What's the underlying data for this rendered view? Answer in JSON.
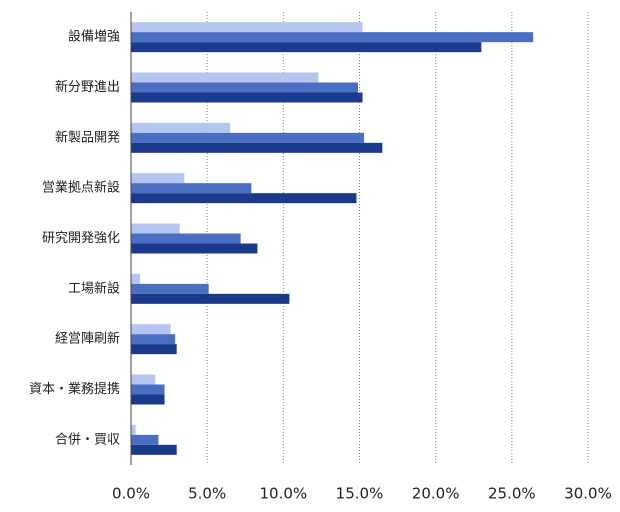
{
  "chart_data": {
    "type": "hbar",
    "categories": [
      "設備増強",
      "新分野進出",
      "新製品開発",
      "営業拠点新設",
      "研究開発強化",
      "工場新設",
      "経営陣刷新",
      "資本・業務提携",
      "合併・買収"
    ],
    "series": [
      {
        "color": "#b4c6ef",
        "values": [
          15.2,
          12.3,
          6.5,
          3.5,
          3.2,
          0.6,
          2.6,
          1.6,
          0.3
        ]
      },
      {
        "color": "#4a6fc2",
        "values": [
          26.4,
          14.9,
          15.3,
          7.9,
          7.2,
          5.1,
          2.9,
          2.2,
          1.8
        ]
      },
      {
        "color": "#1c3a8c",
        "values": [
          23.0,
          15.2,
          16.5,
          14.8,
          8.3,
          10.4,
          3.0,
          2.2,
          3.0
        ]
      }
    ],
    "xlim": [
      0,
      30
    ],
    "xticks": [
      {
        "value": 0,
        "label": "0.0%"
      },
      {
        "value": 5,
        "label": "5.0%"
      },
      {
        "value": 10,
        "label": "10.0%"
      },
      {
        "value": 15,
        "label": "15.0%"
      },
      {
        "value": 20,
        "label": "20.0%"
      },
      {
        "value": 25,
        "label": "25.0%"
      },
      {
        "value": 30,
        "label": "30.0%"
      }
    ],
    "grid": true
  }
}
